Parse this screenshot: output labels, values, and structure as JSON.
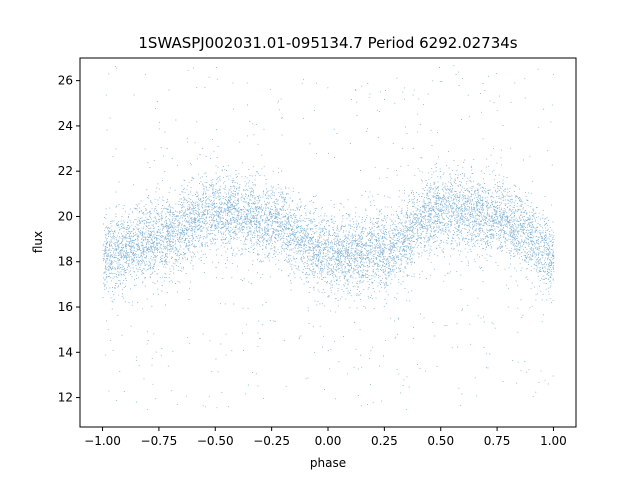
{
  "chart_data": {
    "type": "scatter",
    "title": "1SWASPJ002031.01-095134.7 Period 6292.02734s",
    "xlabel": "phase",
    "ylabel": "flux",
    "xlim": [
      -1.1,
      1.1
    ],
    "ylim": [
      10.7,
      27.0
    ],
    "x_ticks": [
      -1.0,
      -0.75,
      -0.5,
      -0.25,
      0.0,
      0.25,
      0.5,
      0.75,
      1.0
    ],
    "x_tick_labels": [
      "−1.00",
      "−0.75",
      "−0.50",
      "−0.25",
      "0.00",
      "0.25",
      "0.50",
      "0.75",
      "1.00"
    ],
    "y_ticks": [
      12,
      14,
      16,
      18,
      20,
      22,
      24,
      26
    ],
    "y_tick_labels": [
      "12",
      "14",
      "16",
      "18",
      "20",
      "22",
      "24",
      "26"
    ],
    "grid": false,
    "series": [
      {
        "color": "#1f77b4",
        "x_range": [
          -1.0,
          1.0
        ],
        "description_values": {
          "phase": [
            -1.0,
            -0.75,
            -0.5,
            -0.25,
            0.0,
            0.25,
            0.5,
            0.75,
            1.0
          ],
          "median_flux": [
            18.3,
            19.0,
            20.2,
            19.8,
            18.3,
            18.5,
            20.3,
            20.0,
            18.3
          ]
        }
      }
    ]
  }
}
